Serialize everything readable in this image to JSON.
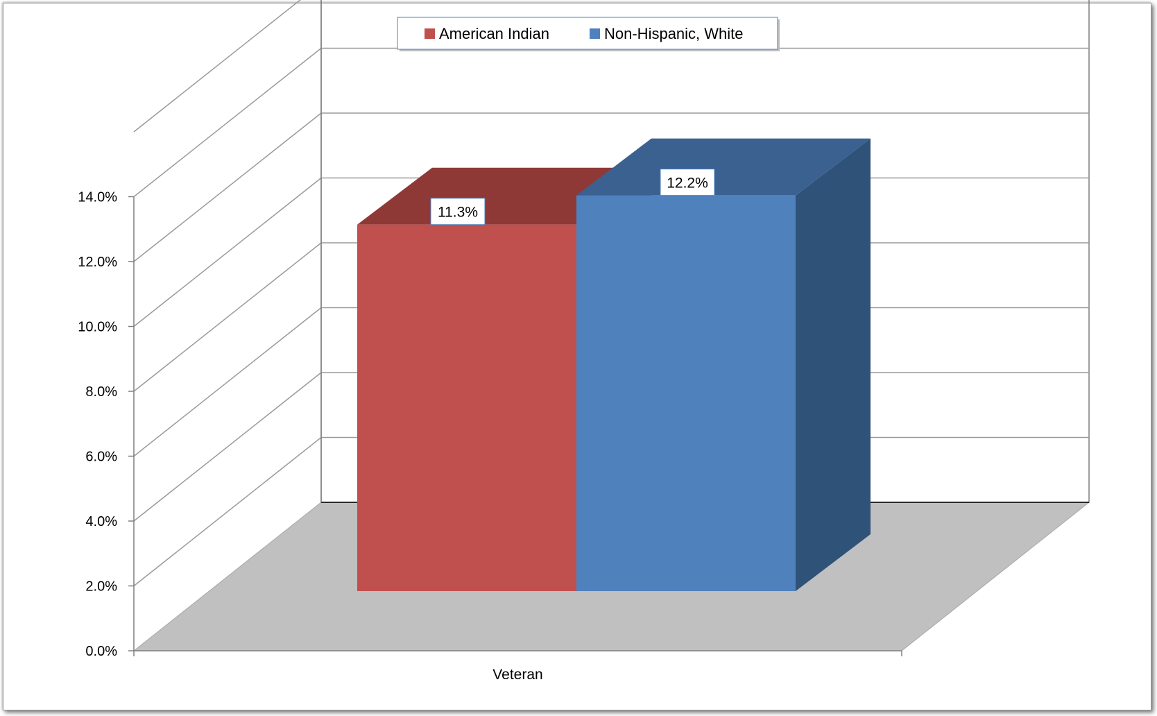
{
  "chart_data": {
    "type": "bar",
    "categories": [
      "Veteran"
    ],
    "series": [
      {
        "name": "American Indian",
        "values": [
          11.3
        ],
        "data_labels": [
          "11.3%"
        ],
        "color": "#c0504d",
        "top_color": "#8f3937",
        "side_color": "#8f3937"
      },
      {
        "name": "Non-Hispanic, White",
        "values": [
          12.2
        ],
        "data_labels": [
          "12.2%"
        ],
        "color": "#4f81bd",
        "top_color": "#3b6190",
        "side_color": "#2f5279"
      }
    ],
    "title": "",
    "xlabel": "",
    "ylabel": "",
    "ylim": [
      0,
      14
    ],
    "yticks": [
      0,
      2,
      4,
      6,
      8,
      10,
      12,
      14
    ],
    "ytick_labels": [
      "0.0%",
      "2.0%",
      "4.0%",
      "6.0%",
      "8.0%",
      "10.0%",
      "12.0%",
      "14.0%"
    ],
    "grid": true,
    "legend": "top-center",
    "style": "3d-clustered-column",
    "colors": {
      "floor": "#c0c0c0",
      "gridline": "#9a9a9a",
      "axis": "#7f7f7f"
    }
  }
}
